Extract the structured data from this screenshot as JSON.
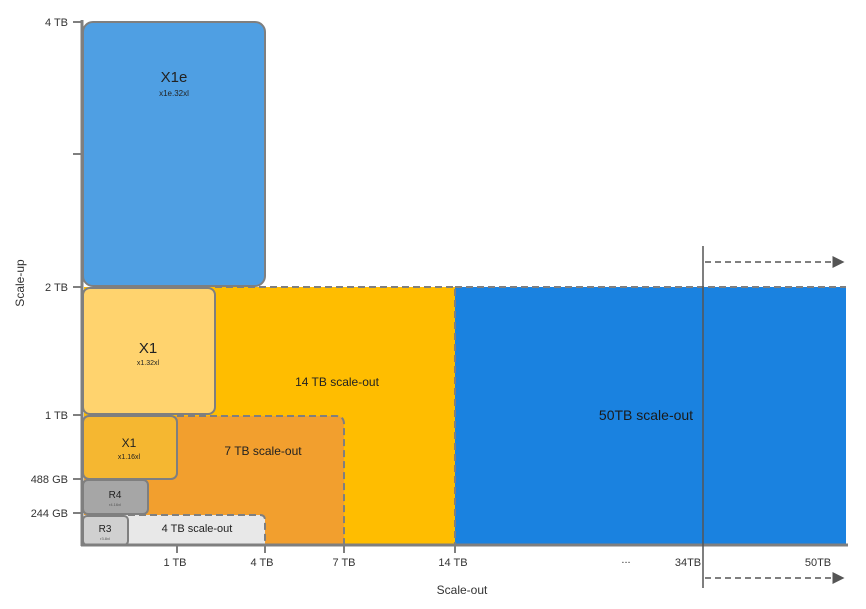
{
  "axes": {
    "y_title": "Scale-up",
    "x_title": "Scale-out",
    "y_ticks": [
      "4 TB",
      "2 TB",
      "1 TB",
      "488 GB",
      "244 GB"
    ],
    "x_ticks": [
      "1 TB",
      "4 TB",
      "7 TB",
      "14 TB",
      "...",
      "34TB",
      "50TB"
    ]
  },
  "blocks": {
    "x1e": {
      "name": "X1e",
      "instance": "x1e.32xl"
    },
    "x1_32": {
      "name": "X1",
      "instance": "x1.32xl"
    },
    "x1_16": {
      "name": "X1",
      "instance": "x1.16xl"
    },
    "r4": {
      "name": "R4",
      "instance": "r4.16xl"
    },
    "r3": {
      "name": "R3",
      "instance": "r3.8xl"
    },
    "scaleout_4": {
      "label": "4 TB scale-out"
    },
    "scaleout_7": {
      "label": "7 TB scale-out"
    },
    "scaleout_14": {
      "label": "14 TB scale-out"
    },
    "scaleout_50": {
      "label": "50TB scale-out"
    }
  },
  "colors": {
    "x1e": "#4f9fe3",
    "x1_32": "#ffd36e",
    "x1_16": "#f5b731",
    "r4": "#a6a6a6",
    "r3": "#d0d0d0",
    "scaleout_4": "#e8e8e8",
    "scaleout_7": "#f29f2e",
    "scaleout_14": "#ffbd00",
    "scaleout_50": "#1a82e0",
    "axis": "#7f7f7f"
  }
}
